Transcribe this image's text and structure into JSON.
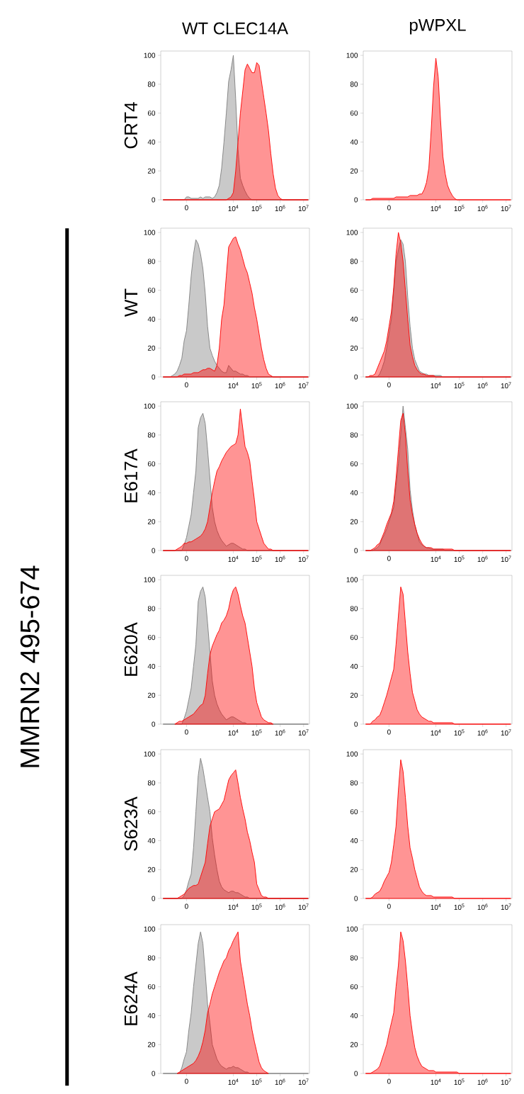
{
  "chart_data": [
    {
      "type": "area",
      "title": "WT CLEC14A",
      "ylabel": "CRT4",
      "ylim": [
        0,
        103
      ],
      "yticks": [
        0,
        20,
        40,
        60,
        80,
        100
      ],
      "categories": [
        null,
        null,
        null,
        null,
        null,
        null,
        null,
        null,
        null,
        null,
        "0",
        null,
        null,
        null,
        null,
        null,
        null,
        null,
        null,
        null,
        null,
        null,
        null,
        null,
        null,
        null,
        null,
        null,
        null,
        null,
        "10$^{4}$",
        null,
        null,
        null,
        null,
        null,
        null,
        null,
        null,
        null,
        "10$^{5}$",
        null,
        null,
        null,
        null,
        null,
        null,
        null,
        null,
        null,
        "10$^{6}$",
        null,
        null,
        null,
        null,
        null,
        null,
        null,
        null,
        null,
        "10$^{7}$",
        null,
        null
      ],
      "series": [
        {
          "color": "#7f7f7f",
          "values": [
            0,
            0,
            0,
            0,
            0,
            0,
            0,
            0,
            0,
            0,
            2,
            2,
            1,
            1,
            1,
            1,
            2,
            1,
            2,
            2,
            2,
            1,
            2,
            5,
            10,
            22,
            40,
            60,
            82,
            90,
            100,
            70,
            35,
            15,
            10,
            6,
            3,
            1,
            0,
            0,
            0,
            0,
            0,
            0,
            0,
            0,
            0,
            0,
            0,
            0,
            0,
            0,
            0,
            0,
            0,
            0,
            0,
            0,
            0,
            0,
            0,
            0,
            0
          ]
        },
        {
          "color": "#ff0000",
          "values": [
            0,
            0,
            0,
            0,
            0,
            0,
            0,
            0,
            0,
            0,
            0,
            0,
            0,
            0,
            0,
            0,
            0,
            0,
            0,
            0,
            0,
            0,
            0,
            0,
            0,
            0,
            0,
            0,
            1,
            2,
            5,
            20,
            40,
            60,
            75,
            90,
            94,
            91,
            88,
            88,
            95,
            93,
            82,
            71,
            60,
            48,
            32,
            18,
            8,
            3,
            1,
            0,
            0,
            0,
            0,
            0,
            0,
            0,
            0,
            0,
            0,
            0,
            0
          ]
        }
      ]
    },
    {
      "type": "area",
      "title": "pWPXL",
      "ylim": [
        0,
        103
      ],
      "yticks": [
        0,
        20,
        40,
        60,
        80,
        100
      ],
      "categories": [
        null,
        null,
        null,
        null,
        null,
        null,
        null,
        null,
        null,
        null,
        "0",
        null,
        null,
        null,
        null,
        null,
        null,
        null,
        null,
        null,
        null,
        null,
        null,
        null,
        null,
        null,
        null,
        null,
        null,
        null,
        "10$^{4}$",
        null,
        null,
        null,
        null,
        null,
        null,
        null,
        null,
        null,
        "10$^{5}$",
        null,
        null,
        null,
        null,
        null,
        null,
        null,
        null,
        null,
        "10$^{6}$",
        null,
        null,
        null,
        null,
        null,
        null,
        null,
        null,
        null,
        "10$^{7}$",
        null,
        null
      ],
      "series": [
        {
          "color": "#ff0000",
          "values": [
            0,
            0,
            0,
            1,
            1,
            1,
            1,
            1,
            1,
            1,
            1,
            1,
            1,
            2,
            2,
            2,
            2,
            2,
            2,
            3,
            3,
            3,
            3,
            4,
            4,
            7,
            12,
            22,
            48,
            78,
            98,
            85,
            55,
            30,
            18,
            10,
            6,
            3,
            1,
            0,
            0,
            0,
            0,
            0,
            0,
            0,
            0,
            0,
            0,
            0,
            0,
            0,
            0,
            0,
            0,
            0,
            0,
            0,
            0,
            0,
            0,
            0,
            0
          ]
        }
      ]
    },
    {
      "type": "area",
      "ylabel": "WT",
      "annotations": [
        "MMRN2 495-674"
      ],
      "ylim": [
        0,
        103
      ],
      "yticks": [
        0,
        20,
        40,
        60,
        80,
        100
      ],
      "categories": [
        null,
        null,
        null,
        null,
        null,
        null,
        null,
        null,
        null,
        null,
        "0",
        null,
        null,
        null,
        null,
        null,
        null,
        null,
        null,
        null,
        null,
        null,
        null,
        null,
        null,
        null,
        null,
        null,
        null,
        null,
        "10$^{4}$",
        null,
        null,
        null,
        null,
        null,
        null,
        null,
        null,
        null,
        "10$^{5}$",
        null,
        null,
        null,
        null,
        null,
        null,
        null,
        null,
        null,
        "10$^{6}$",
        null,
        null,
        null,
        null,
        null,
        null,
        null,
        null,
        null,
        "10$^{7}$",
        null,
        null
      ],
      "series": [
        {
          "color": "#7f7f7f",
          "values": [
            0,
            0,
            0,
            0,
            1,
            2,
            4,
            8,
            13,
            25,
            32,
            50,
            70,
            85,
            95,
            92,
            85,
            75,
            58,
            35,
            20,
            15,
            11,
            8,
            6,
            4,
            3,
            3,
            8,
            6,
            4,
            4,
            3,
            2,
            2,
            1,
            1,
            0,
            0,
            0,
            0,
            0,
            0,
            0,
            0,
            0,
            0,
            0,
            0,
            0,
            0,
            0,
            0,
            0,
            0,
            0,
            0,
            0,
            0,
            0,
            0,
            0,
            0
          ]
        },
        {
          "color": "#ff0000",
          "values": [
            0,
            0,
            0,
            0,
            0,
            0,
            0,
            1,
            1,
            2,
            2,
            2,
            2,
            3,
            3,
            3,
            4,
            5,
            5,
            6,
            6,
            5,
            4,
            8,
            20,
            40,
            50,
            70,
            90,
            93,
            96,
            97,
            92,
            88,
            82,
            76,
            72,
            65,
            58,
            48,
            40,
            30,
            20,
            12,
            6,
            2,
            1,
            0,
            0,
            0,
            0,
            0,
            0,
            0,
            0,
            0,
            0,
            0,
            0,
            0,
            0,
            0,
            0
          ]
        }
      ]
    },
    {
      "type": "area",
      "ylim": [
        0,
        103
      ],
      "yticks": [
        0,
        20,
        40,
        60,
        80,
        100
      ],
      "categories": [
        null,
        null,
        null,
        null,
        null,
        null,
        null,
        null,
        null,
        null,
        "0",
        null,
        null,
        null,
        null,
        null,
        null,
        null,
        null,
        null,
        null,
        null,
        null,
        null,
        null,
        null,
        null,
        null,
        null,
        null,
        "10$^{4}$",
        null,
        null,
        null,
        null,
        null,
        null,
        null,
        null,
        null,
        "10$^{5}$",
        null,
        null,
        null,
        null,
        null,
        null,
        null,
        null,
        null,
        "10$^{6}$",
        null,
        null,
        null,
        null,
        null,
        null,
        null,
        null,
        null,
        "10$^{7}$",
        null,
        null
      ],
      "series": [
        {
          "color": "#7f7f7f",
          "values": [
            0,
            0,
            0,
            0,
            0,
            0,
            2,
            6,
            11,
            20,
            30,
            40,
            60,
            80,
            88,
            95,
            92,
            80,
            55,
            35,
            20,
            12,
            8,
            4,
            3,
            2,
            2,
            1,
            1,
            1,
            1,
            1,
            1,
            0,
            0,
            0,
            0,
            0,
            0,
            0,
            0,
            0,
            0,
            0,
            0,
            0,
            0,
            0,
            0,
            0,
            0,
            0,
            0,
            0,
            0,
            0,
            0,
            0,
            0,
            0,
            0,
            0,
            0
          ]
        },
        {
          "color": "#ff0000",
          "values": [
            0,
            0,
            1,
            1,
            2,
            6,
            10,
            14,
            18,
            25,
            35,
            45,
            62,
            85,
            100,
            93,
            80,
            60,
            40,
            22,
            14,
            8,
            5,
            3,
            2,
            2,
            1,
            1,
            1,
            1,
            0,
            0,
            0,
            0,
            0,
            0,
            0,
            0,
            0,
            0,
            0,
            0,
            0,
            0,
            0,
            0,
            0,
            0,
            0,
            0,
            0,
            0,
            0,
            0,
            0,
            0,
            0,
            0,
            0,
            0,
            0,
            0,
            0
          ]
        }
      ]
    },
    {
      "type": "area",
      "ylabel": "E617A",
      "ylim": [
        0,
        103
      ],
      "yticks": [
        0,
        20,
        40,
        60,
        80,
        100
      ],
      "categories": [
        null,
        null,
        null,
        null,
        null,
        null,
        null,
        null,
        null,
        null,
        "0",
        null,
        null,
        null,
        null,
        null,
        null,
        null,
        null,
        null,
        null,
        null,
        null,
        null,
        null,
        null,
        null,
        null,
        null,
        null,
        "10$^{4}$",
        null,
        null,
        null,
        null,
        null,
        null,
        null,
        null,
        null,
        "10$^{5}$",
        null,
        null,
        null,
        null,
        null,
        null,
        null,
        null,
        null,
        "10$^{6}$",
        null,
        null,
        null,
        null,
        null,
        null,
        null,
        null,
        null,
        "10$^{7}$",
        null,
        null
      ],
      "series": [
        {
          "color": "#7f7f7f",
          "values": [
            0,
            0,
            0,
            0,
            0,
            0,
            0,
            0,
            0,
            4,
            9,
            17,
            25,
            40,
            55,
            85,
            92,
            95,
            88,
            70,
            50,
            30,
            20,
            14,
            10,
            7,
            5,
            3,
            4,
            5,
            5,
            4,
            3,
            2,
            1,
            1,
            0,
            0,
            0,
            0,
            0,
            0,
            0,
            0,
            0,
            0,
            0,
            0,
            0,
            0,
            0,
            0,
            0,
            0,
            0,
            0,
            0,
            0,
            0,
            0,
            0,
            0,
            0
          ]
        },
        {
          "color": "#ff0000",
          "values": [
            0,
            0,
            0,
            0,
            0,
            0,
            1,
            2,
            3,
            5,
            5,
            6,
            6,
            7,
            8,
            9,
            10,
            12,
            15,
            20,
            30,
            40,
            48,
            55,
            58,
            62,
            65,
            68,
            70,
            72,
            73,
            74,
            80,
            98,
            85,
            72,
            68,
            62,
            48,
            35,
            20,
            15,
            10,
            5,
            3,
            1,
            1,
            0,
            0,
            0,
            0,
            0,
            0,
            0,
            0,
            0,
            0,
            0,
            0,
            0,
            0,
            0,
            0
          ]
        }
      ]
    },
    {
      "type": "area",
      "ylim": [
        0,
        103
      ],
      "yticks": [
        0,
        20,
        40,
        60,
        80,
        100
      ],
      "categories": [
        null,
        null,
        null,
        null,
        null,
        null,
        null,
        null,
        null,
        null,
        "0",
        null,
        null,
        null,
        null,
        null,
        null,
        null,
        null,
        null,
        null,
        null,
        null,
        null,
        null,
        null,
        null,
        null,
        null,
        null,
        "10$^{4}$",
        null,
        null,
        null,
        null,
        null,
        null,
        null,
        null,
        null,
        "10$^{5}$",
        null,
        null,
        null,
        null,
        null,
        null,
        null,
        null,
        null,
        "10$^{6}$",
        null,
        null,
        null,
        null,
        null,
        null,
        null,
        null,
        null,
        "10$^{7}$",
        null,
        null
      ],
      "series": [
        {
          "color": "#7f7f7f",
          "values": [
            0,
            0,
            0,
            0,
            1,
            2,
            4,
            8,
            11,
            15,
            20,
            25,
            30,
            45,
            60,
            80,
            100,
            85,
            70,
            42,
            28,
            18,
            12,
            6,
            4,
            3,
            2,
            2,
            1,
            1,
            1,
            1,
            1,
            1,
            0,
            0,
            0,
            0,
            0,
            0,
            0,
            0,
            0,
            0,
            0,
            0,
            0,
            0,
            0,
            0,
            0,
            0,
            0,
            0,
            0,
            0,
            0,
            0,
            0,
            0,
            0,
            0,
            0
          ]
        },
        {
          "color": "#ff0000",
          "values": [
            0,
            0,
            0,
            1,
            2,
            4,
            5,
            9,
            13,
            18,
            22,
            26,
            34,
            50,
            70,
            90,
            95,
            80,
            55,
            35,
            25,
            18,
            12,
            8,
            5,
            3,
            2,
            2,
            2,
            1,
            1,
            1,
            1,
            1,
            1,
            1,
            1,
            1,
            0,
            0,
            0,
            0,
            0,
            0,
            0,
            0,
            0,
            0,
            0,
            0,
            0,
            0,
            0,
            0,
            0,
            0,
            0,
            0,
            0,
            0,
            0,
            0,
            0
          ]
        }
      ]
    },
    {
      "type": "area",
      "ylabel": "E620A",
      "ylim": [
        0,
        103
      ],
      "yticks": [
        0,
        20,
        40,
        60,
        80,
        100
      ],
      "categories": [
        null,
        null,
        null,
        null,
        null,
        null,
        null,
        null,
        null,
        null,
        "0",
        null,
        null,
        null,
        null,
        null,
        null,
        null,
        null,
        null,
        null,
        null,
        null,
        null,
        null,
        null,
        null,
        null,
        null,
        null,
        "10$^{4}$",
        null,
        null,
        null,
        null,
        null,
        null,
        null,
        null,
        null,
        "10$^{5}$",
        null,
        null,
        null,
        null,
        null,
        null,
        null,
        null,
        null,
        "10$^{6}$",
        null,
        null,
        null,
        null,
        null,
        null,
        null,
        null,
        null,
        "10$^{7}$",
        null,
        null
      ],
      "series": [
        {
          "color": "#7f7f7f",
          "values": [
            0,
            0,
            0,
            0,
            0,
            0,
            0,
            0,
            0,
            4,
            9,
            17,
            25,
            40,
            55,
            85,
            92,
            95,
            88,
            70,
            50,
            30,
            20,
            14,
            10,
            7,
            5,
            3,
            4,
            5,
            5,
            4,
            3,
            2,
            1,
            1,
            0,
            0,
            0,
            0,
            0,
            0,
            0,
            0,
            0,
            0,
            0,
            0,
            0,
            0,
            0,
            0,
            0,
            0,
            0,
            0,
            0,
            0,
            0,
            0,
            0,
            0,
            0
          ]
        },
        {
          "color": "#ff0000",
          "values": [
            null,
            null,
            null,
            null,
            null,
            0,
            1,
            2,
            2,
            3,
            4,
            5,
            6,
            7,
            9,
            11,
            13,
            14,
            20,
            35,
            48,
            54,
            58,
            62,
            65,
            70,
            72,
            75,
            80,
            88,
            93,
            95,
            90,
            82,
            75,
            70,
            60,
            50,
            40,
            25,
            15,
            10,
            5,
            3,
            2,
            1,
            1,
            0,
            null,
            null,
            null,
            null,
            null,
            null,
            null,
            null,
            null,
            null,
            null,
            null,
            null,
            null,
            null
          ]
        }
      ]
    },
    {
      "type": "area",
      "ylim": [
        0,
        103
      ],
      "yticks": [
        0,
        20,
        40,
        60,
        80,
        100
      ],
      "categories": [
        null,
        null,
        null,
        null,
        null,
        null,
        null,
        null,
        null,
        null,
        "0",
        null,
        null,
        null,
        null,
        null,
        null,
        null,
        null,
        null,
        null,
        null,
        null,
        null,
        null,
        null,
        null,
        null,
        null,
        null,
        "10$^{4}$",
        null,
        null,
        null,
        null,
        null,
        null,
        null,
        null,
        null,
        "10$^{5}$",
        null,
        null,
        null,
        null,
        null,
        null,
        null,
        null,
        null,
        "10$^{6}$",
        null,
        null,
        null,
        null,
        null,
        null,
        null,
        null,
        null,
        "10$^{7}$",
        null,
        null
      ],
      "series": [
        {
          "color": "#ff0000",
          "values": [
            0,
            0,
            0,
            2,
            3,
            5,
            6,
            10,
            15,
            20,
            26,
            32,
            38,
            55,
            75,
            95,
            90,
            70,
            50,
            35,
            22,
            16,
            10,
            7,
            5,
            4,
            3,
            2,
            2,
            1,
            1,
            1,
            1,
            1,
            1,
            1,
            1,
            1,
            0,
            0,
            0,
            0,
            0,
            0,
            0,
            0,
            0,
            0,
            0,
            0,
            0,
            0,
            0,
            0,
            0,
            0,
            0,
            0,
            0,
            0,
            0,
            0,
            0
          ]
        }
      ]
    },
    {
      "type": "area",
      "ylabel": "S623A",
      "ylim": [
        0,
        103
      ],
      "yticks": [
        0,
        20,
        40,
        60,
        80,
        100
      ],
      "categories": [
        null,
        null,
        null,
        null,
        null,
        null,
        null,
        null,
        null,
        null,
        "0",
        null,
        null,
        null,
        null,
        null,
        null,
        null,
        null,
        null,
        null,
        null,
        null,
        null,
        null,
        null,
        null,
        null,
        null,
        null,
        "10$^{4}$",
        null,
        null,
        null,
        null,
        null,
        null,
        null,
        null,
        null,
        "10$^{5}$",
        null,
        null,
        null,
        null,
        null,
        null,
        null,
        null,
        null,
        "10$^{6}$",
        null,
        null,
        null,
        null,
        null,
        null,
        null,
        null,
        null,
        "10$^{7}$",
        null,
        null
      ],
      "series": [
        {
          "color": "#7f7f7f",
          "values": [
            0,
            0,
            0,
            0,
            0,
            0,
            0,
            0,
            0,
            2,
            6,
            12,
            17,
            35,
            60,
            85,
            97,
            90,
            80,
            70,
            60,
            42,
            30,
            20,
            12,
            8,
            6,
            5,
            4,
            5,
            5,
            4,
            4,
            3,
            2,
            1,
            1,
            0,
            0,
            0,
            0,
            0,
            0,
            0,
            0,
            0,
            0,
            0,
            0,
            0,
            0,
            0,
            0,
            0,
            0,
            0,
            0,
            0,
            0,
            0,
            0,
            0,
            0
          ]
        },
        {
          "color": "#ff0000",
          "values": [
            0,
            0,
            0,
            0,
            0,
            0,
            0,
            1,
            2,
            3,
            5,
            7,
            8,
            9,
            9,
            10,
            15,
            20,
            25,
            38,
            50,
            55,
            60,
            61,
            62,
            65,
            68,
            75,
            82,
            85,
            87,
            89,
            80,
            70,
            62,
            55,
            46,
            40,
            32,
            25,
            10,
            6,
            2,
            1,
            1,
            0,
            0,
            0,
            0,
            0,
            0,
            0,
            0,
            0,
            0,
            0,
            0,
            0,
            0,
            0,
            0,
            0,
            0
          ]
        }
      ]
    },
    {
      "type": "area",
      "ylim": [
        0,
        103
      ],
      "yticks": [
        0,
        20,
        40,
        60,
        80,
        100
      ],
      "categories": [
        null,
        null,
        null,
        null,
        null,
        null,
        null,
        null,
        null,
        null,
        "0",
        null,
        null,
        null,
        null,
        null,
        null,
        null,
        null,
        null,
        null,
        null,
        null,
        null,
        null,
        null,
        null,
        null,
        null,
        null,
        "10$^{4}$",
        null,
        null,
        null,
        null,
        null,
        null,
        null,
        null,
        null,
        "10$^{5}$",
        null,
        null,
        null,
        null,
        null,
        null,
        null,
        null,
        null,
        "10$^{6}$",
        null,
        null,
        null,
        null,
        null,
        null,
        null,
        null,
        null,
        "10$^{7}$",
        null,
        null
      ],
      "series": [
        {
          "color": "#ff0000",
          "values": [
            0,
            0,
            0,
            1,
            3,
            4,
            5,
            8,
            12,
            15,
            18,
            25,
            37,
            50,
            75,
            96,
            88,
            70,
            50,
            35,
            28,
            20,
            14,
            8,
            5,
            3,
            2,
            2,
            2,
            1,
            1,
            1,
            1,
            1,
            1,
            1,
            1,
            1,
            0,
            0,
            0,
            0,
            0,
            0,
            0,
            0,
            0,
            0,
            0,
            0,
            0,
            0,
            0,
            0,
            0,
            0,
            0,
            0,
            0,
            0,
            0,
            0,
            0
          ]
        }
      ]
    },
    {
      "type": "area",
      "ylabel": "E624A",
      "ylim": [
        0,
        103
      ],
      "yticks": [
        0,
        20,
        40,
        60,
        80,
        100
      ],
      "categories": [
        null,
        null,
        null,
        null,
        null,
        null,
        null,
        null,
        null,
        null,
        "0",
        null,
        null,
        null,
        null,
        null,
        null,
        null,
        null,
        null,
        null,
        null,
        null,
        null,
        null,
        null,
        null,
        null,
        null,
        null,
        "10$^{4}$",
        null,
        null,
        null,
        null,
        null,
        null,
        null,
        null,
        null,
        "10$^{5}$",
        null,
        null,
        null,
        null,
        null,
        null,
        null,
        null,
        null,
        "10$^{6}$",
        null,
        null,
        null,
        null,
        null,
        null,
        null,
        null,
        null,
        "10$^{7}$",
        null,
        null
      ],
      "series": [
        {
          "color": "#7f7f7f",
          "values": [
            0,
            0,
            0,
            0,
            0,
            0,
            0,
            0,
            4,
            10,
            15,
            30,
            42,
            60,
            75,
            90,
            98,
            90,
            70,
            48,
            35,
            20,
            15,
            10,
            7,
            5,
            4,
            3,
            4,
            4,
            5,
            4,
            4,
            3,
            2,
            1,
            1,
            0,
            0,
            0,
            0,
            0,
            0,
            0,
            0,
            0,
            0,
            0,
            0,
            0,
            0,
            0,
            0,
            0,
            0,
            0,
            0,
            0,
            0,
            0,
            0,
            0,
            0
          ]
        },
        {
          "color": "#ff0000",
          "values": [
            null,
            null,
            null,
            null,
            null,
            null,
            0,
            1,
            2,
            3,
            4,
            5,
            6,
            7,
            9,
            12,
            16,
            22,
            30,
            42,
            48,
            55,
            60,
            65,
            70,
            74,
            78,
            80,
            85,
            88,
            92,
            95,
            98,
            78,
            68,
            58,
            48,
            40,
            30,
            22,
            15,
            8,
            4,
            2,
            1,
            0,
            null,
            null,
            null,
            null,
            null,
            null,
            null,
            null,
            null,
            null,
            null,
            null,
            null,
            null,
            null,
            null,
            null
          ]
        }
      ]
    },
    {
      "type": "area",
      "ylim": [
        0,
        103
      ],
      "yticks": [
        0,
        20,
        40,
        60,
        80,
        100
      ],
      "categories": [
        null,
        null,
        null,
        null,
        null,
        null,
        null,
        null,
        null,
        null,
        "0",
        null,
        null,
        null,
        null,
        null,
        null,
        null,
        null,
        null,
        null,
        null,
        null,
        null,
        null,
        null,
        null,
        null,
        null,
        null,
        "10$^{4}$",
        null,
        null,
        null,
        null,
        null,
        null,
        null,
        null,
        null,
        "10$^{5}$",
        null,
        null,
        null,
        null,
        null,
        null,
        null,
        null,
        null,
        "10$^{6}$",
        null,
        null,
        null,
        null,
        null,
        null,
        null,
        null,
        null,
        "10$^{7}$",
        null,
        null
      ],
      "series": [
        {
          "color": "#ff0000",
          "values": [
            0,
            0,
            0,
            1,
            2,
            3,
            5,
            10,
            15,
            20,
            28,
            35,
            42,
            60,
            75,
            98,
            92,
            78,
            60,
            40,
            28,
            18,
            12,
            8,
            5,
            4,
            3,
            2,
            2,
            2,
            1,
            1,
            1,
            1,
            1,
            1,
            1,
            1,
            1,
            1,
            0,
            0,
            0,
            0,
            0,
            0,
            0,
            0,
            0,
            0,
            0,
            0,
            0,
            0,
            0,
            0,
            0,
            0,
            0,
            0,
            0,
            0,
            0
          ]
        }
      ]
    }
  ]
}
